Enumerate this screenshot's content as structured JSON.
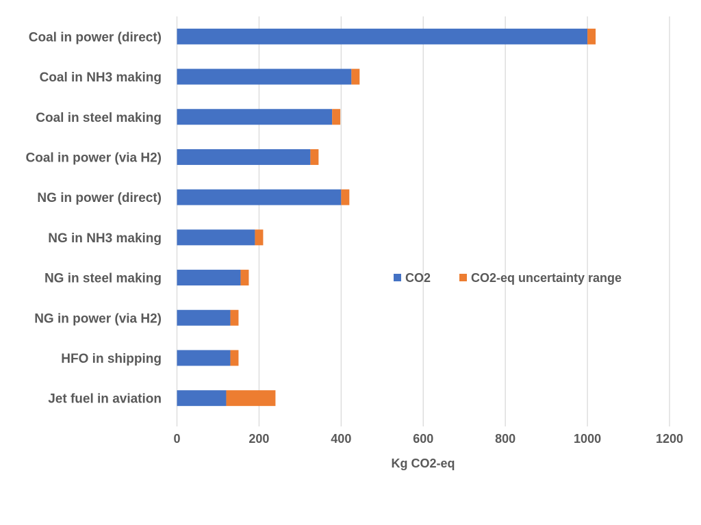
{
  "chart_data": {
    "type": "bar",
    "orientation": "horizontal",
    "stacked": true,
    "categories": [
      "Coal in power (direct)",
      "Coal in NH3 making",
      "Coal in steel making",
      "Coal in power (via H2)",
      "NG in power (direct)",
      "NG in NH3 making",
      "NG in steel making",
      "NG in power (via H2)",
      "HFO in shipping",
      "Jet fuel in aviation"
    ],
    "series": [
      {
        "name": "CO2",
        "color": "#4472C4",
        "values": [
          1000,
          425,
          378,
          325,
          400,
          190,
          155,
          130,
          130,
          120
        ]
      },
      {
        "name": "CO2-eq uncertainty range",
        "color": "#ED7D31",
        "values": [
          20,
          20,
          20,
          20,
          20,
          20,
          20,
          20,
          20,
          120
        ]
      }
    ],
    "xlabel": "Kg CO2-eq",
    "ylabel": "",
    "title": "",
    "xlim": [
      0,
      1200
    ],
    "xticks": [
      0,
      200,
      400,
      600,
      800,
      1000,
      1200
    ],
    "grid": "vertical",
    "legend": "inside-right"
  }
}
